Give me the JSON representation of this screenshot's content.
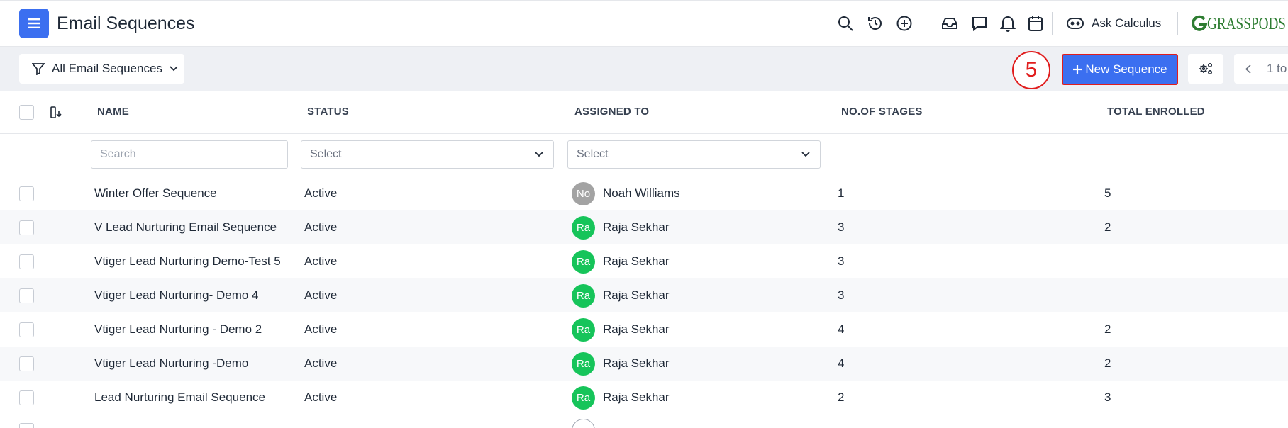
{
  "header": {
    "title": "Email Sequences",
    "ask_label": "Ask Calculus",
    "logo_text": "GRASSPODS",
    "icons": [
      "search-icon",
      "history-icon",
      "add-circle-icon",
      "inbox-icon",
      "chat-icon",
      "bell-icon",
      "calendar-icon"
    ]
  },
  "toolbar": {
    "filter_label": "All Email Sequences",
    "step_number": "5",
    "new_label": "New Sequence",
    "pager_text": "1 to"
  },
  "table": {
    "columns": [
      "NAME",
      "STATUS",
      "ASSIGNED TO",
      "NO.OF STAGES",
      "TOTAL ENROLLED"
    ],
    "search_placeholder": "Search",
    "status_select": "Select",
    "assigned_select": "Select",
    "rows": [
      {
        "name": "Winter Offer Sequence",
        "status": "Active",
        "initials": "No",
        "assignee": "Noah Williams",
        "stages": "1",
        "enrolled": "5",
        "avatar_color": "#a3a3a3"
      },
      {
        "name": "V Lead Nurturing Email Sequence",
        "status": "Active",
        "initials": "Ra",
        "assignee": "Raja Sekhar",
        "stages": "3",
        "enrolled": "2",
        "avatar_color": "#16c45a"
      },
      {
        "name": "Vtiger Lead Nurturing Demo-Test 5",
        "status": "Active",
        "initials": "Ra",
        "assignee": "Raja Sekhar",
        "stages": "3",
        "enrolled": "",
        "avatar_color": "#16c45a"
      },
      {
        "name": "Vtiger Lead Nurturing- Demo 4",
        "status": "Active",
        "initials": "Ra",
        "assignee": "Raja Sekhar",
        "stages": "3",
        "enrolled": "",
        "avatar_color": "#16c45a"
      },
      {
        "name": "Vtiger Lead Nurturing - Demo 2",
        "status": "Active",
        "initials": "Ra",
        "assignee": "Raja Sekhar",
        "stages": "4",
        "enrolled": "2",
        "avatar_color": "#16c45a"
      },
      {
        "name": "Vtiger Lead Nurturing -Demo",
        "status": "Active",
        "initials": "Ra",
        "assignee": "Raja Sekhar",
        "stages": "4",
        "enrolled": "2",
        "avatar_color": "#16c45a"
      },
      {
        "name": "Lead Nurturing Email Sequence",
        "status": "Active",
        "initials": "Ra",
        "assignee": "Raja Sekhar",
        "stages": "2",
        "enrolled": "3",
        "avatar_color": "#16c45a"
      }
    ]
  },
  "colors": {
    "accent": "#3b6ff0",
    "highlight": "#e11d1d"
  }
}
